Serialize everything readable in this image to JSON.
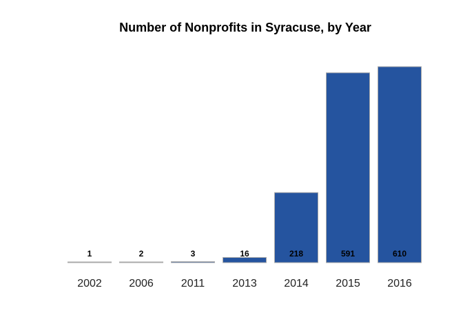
{
  "chart_data": {
    "type": "bar",
    "title": "Number of Nonprofits in Syracuse, by Year",
    "xlabel": "",
    "ylabel": "",
    "categories": [
      "2002",
      "2006",
      "2011",
      "2013",
      "2014",
      "2015",
      "2016"
    ],
    "values": [
      1,
      2,
      3,
      16,
      218,
      591,
      610
    ],
    "data_labels": [
      "1",
      "2",
      "3",
      "16",
      "218",
      "591",
      "610"
    ],
    "ylim": [
      0,
      610
    ],
    "grid": false,
    "legend": "none",
    "colors": {
      "bar_fill": "#25549f",
      "bar_stroke": "#a9a9a9"
    }
  }
}
